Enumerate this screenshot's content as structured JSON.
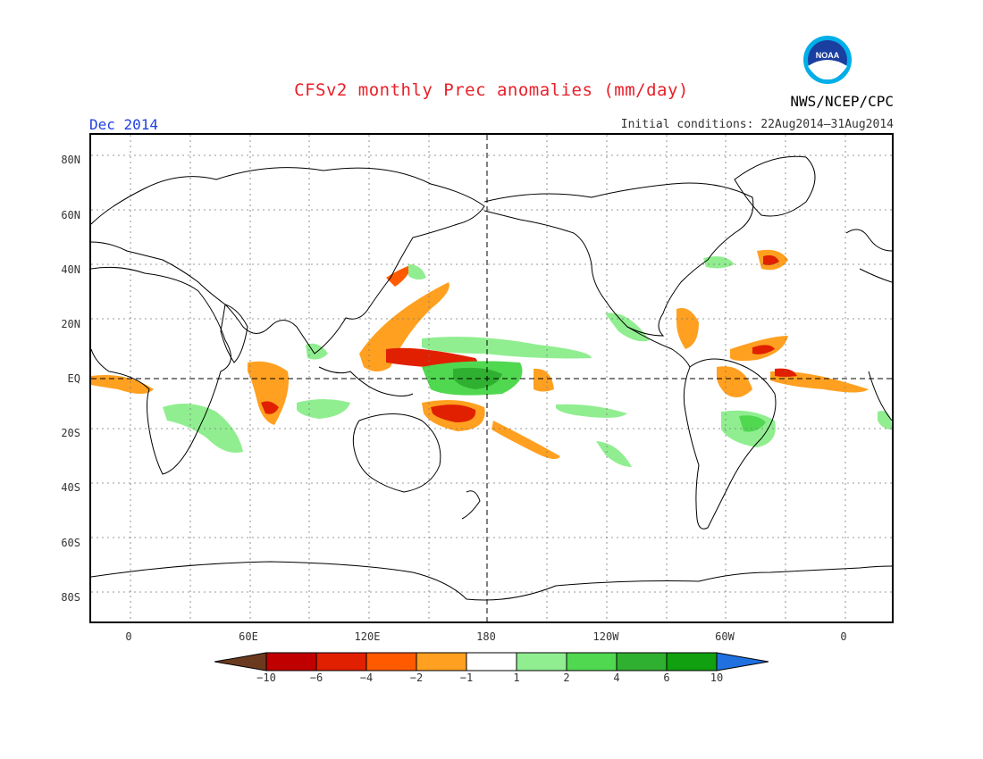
{
  "header": {
    "title": "CFSv2 monthly Prec anomalies (mm/day)",
    "period": "Dec 2014",
    "initial_conditions": "Initial conditions: 22Aug2014–31Aug2014",
    "agency": "NWS/NCEP/CPC",
    "logo_text": "NOAA"
  },
  "axes": {
    "y_ticks": [
      "80N",
      "60N",
      "40N",
      "20N",
      "EQ",
      "20S",
      "40S",
      "60S",
      "80S"
    ],
    "x_ticks": [
      "0",
      "60E",
      "120E",
      "180",
      "120W",
      "60W",
      "0"
    ]
  },
  "legend": {
    "labels": [
      "−10",
      "−6",
      "−4",
      "−2",
      "−1",
      "1",
      "2",
      "4",
      "6",
      "10"
    ],
    "colors": [
      "#6b3a1e",
      "#c00000",
      "#e02000",
      "#ff5a00",
      "#ffa020",
      "#ffffff",
      "#90ee90",
      "#50d850",
      "#30b030",
      "#10a010",
      "#2070e0"
    ]
  },
  "map_colors": {
    "dry_strong": "#e02000",
    "dry": "#ffa020",
    "dry_mid": "#ff5a00",
    "wet": "#90ee90",
    "wet_mid": "#50d850",
    "wet_strong": "#30b030",
    "land_outline": "#000000",
    "grid": "#777777"
  }
}
